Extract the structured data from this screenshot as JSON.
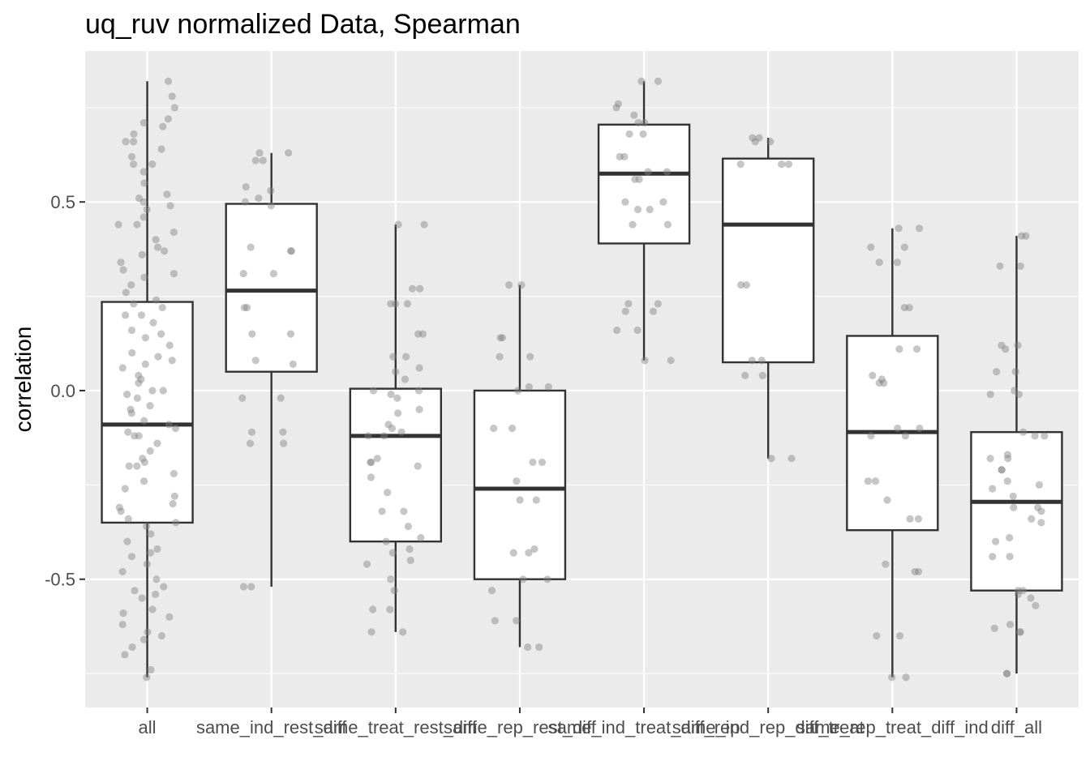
{
  "chart_data": {
    "type": "box",
    "title": "uq_ruv normalized Data, Spearman",
    "xlabel": "",
    "ylabel": "correlation",
    "ylim": [
      -0.84,
      0.9
    ],
    "yticks": [
      {
        "value": -0.5,
        "label": "-0.5"
      },
      {
        "value": 0.0,
        "label": "0.0"
      },
      {
        "value": 0.5,
        "label": "0.5"
      }
    ],
    "grid": true,
    "background": "#ebebeb",
    "point_color": "#808080",
    "categories": [
      "all",
      "same_ind_rest_diff",
      "same_treat_rest_diff",
      "same_rep_rest_diff",
      "same_ind_treat_diff_rep",
      "same_ind_rep_diff_treat",
      "same_rep_treat_diff_ind",
      "diff_all"
    ],
    "boxes": [
      {
        "category": "all",
        "min": -0.76,
        "q1": -0.35,
        "median": -0.09,
        "q3": 0.235,
        "max": 0.82
      },
      {
        "category": "same_ind_rest_diff",
        "min": -0.52,
        "q1": 0.05,
        "median": 0.265,
        "q3": 0.495,
        "max": 0.63
      },
      {
        "category": "same_treat_rest_diff",
        "min": -0.64,
        "q1": -0.4,
        "median": -0.12,
        "q3": 0.005,
        "max": 0.44
      },
      {
        "category": "same_rep_rest_diff",
        "min": -0.68,
        "q1": -0.5,
        "median": -0.26,
        "q3": 0.0,
        "max": 0.28
      },
      {
        "category": "same_ind_treat_diff_rep",
        "min": 0.08,
        "q1": 0.39,
        "median": 0.575,
        "q3": 0.705,
        "max": 0.82
      },
      {
        "category": "same_ind_rep_diff_treat",
        "min": -0.18,
        "q1": 0.075,
        "median": 0.44,
        "q3": 0.615,
        "max": 0.67
      },
      {
        "category": "same_rep_treat_diff_ind",
        "min": -0.76,
        "q1": -0.37,
        "median": -0.11,
        "q3": 0.145,
        "max": 0.43
      },
      {
        "category": "diff_all",
        "min": -0.75,
        "q1": -0.53,
        "median": -0.295,
        "q3": -0.11,
        "max": 0.41
      }
    ],
    "points": [
      [
        -0.76,
        -0.74,
        -0.7,
        -0.68,
        -0.66,
        -0.64,
        -0.62,
        -0.6,
        -0.58,
        -0.55,
        -0.53,
        -0.52,
        -0.5,
        -0.48,
        -0.46,
        -0.44,
        -0.42,
        -0.4,
        -0.38,
        -0.36,
        -0.34,
        -0.32,
        -0.3,
        -0.28,
        -0.26,
        -0.24,
        -0.22,
        -0.2,
        -0.18,
        -0.16,
        -0.14,
        -0.12,
        -0.11,
        -0.1,
        -0.08,
        -0.06,
        -0.04,
        -0.02,
        -0.01,
        0.0,
        0.02,
        0.04,
        0.06,
        0.08,
        0.1,
        0.12,
        0.14,
        0.16,
        0.18,
        0.2,
        0.22,
        0.24,
        0.26,
        0.28,
        0.3,
        0.32,
        0.34,
        0.36,
        0.38,
        0.4,
        0.42,
        0.44,
        0.46,
        0.48,
        0.5,
        0.52,
        0.55,
        0.58,
        0.6,
        0.62,
        0.64,
        0.66,
        0.68,
        0.7,
        0.72,
        0.75,
        0.78,
        0.82,
        -0.65,
        -0.54,
        -0.43,
        -0.31,
        -0.2,
        -0.12,
        -0.05,
        0.03,
        0.09,
        0.15,
        0.23,
        0.31,
        0.44,
        0.51,
        0.6,
        0.71,
        -0.59,
        -0.35,
        -0.19,
        -0.09,
        0.0,
        0.07,
        0.2,
        0.37,
        0.49,
        0.66
      ],
      [
        -0.52,
        -0.52,
        -0.14,
        -0.11,
        -0.02,
        0.07,
        0.08,
        0.15,
        0.15,
        0.22,
        0.22,
        0.31,
        0.31,
        0.37,
        0.37,
        0.38,
        0.49,
        0.5,
        0.51,
        0.53,
        0.54,
        0.61,
        0.61,
        0.63,
        0.63,
        -0.14,
        -0.11,
        -0.02
      ],
      [
        -0.64,
        -0.64,
        -0.58,
        -0.58,
        -0.53,
        -0.5,
        -0.46,
        -0.45,
        -0.43,
        -0.42,
        -0.4,
        -0.39,
        -0.36,
        -0.32,
        -0.32,
        -0.27,
        -0.23,
        -0.2,
        -0.19,
        -0.19,
        -0.18,
        -0.12,
        -0.12,
        -0.11,
        -0.1,
        -0.09,
        -0.06,
        -0.05,
        -0.02,
        -0.01,
        0.0,
        0.0,
        0.03,
        0.05,
        0.06,
        0.09,
        0.09,
        0.15,
        0.15,
        0.23,
        0.23,
        0.23,
        0.27,
        0.27,
        0.44,
        0.44
      ],
      [
        -0.68,
        -0.68,
        -0.61,
        -0.61,
        -0.5,
        -0.5,
        -0.43,
        -0.43,
        -0.42,
        -0.29,
        -0.29,
        -0.24,
        -0.19,
        -0.19,
        -0.1,
        -0.1,
        0.0,
        0.01,
        0.01,
        0.09,
        0.09,
        0.14,
        0.14,
        0.28,
        0.28,
        -0.53
      ],
      [
        0.08,
        0.08,
        0.16,
        0.16,
        0.21,
        0.21,
        0.23,
        0.23,
        0.44,
        0.44,
        0.48,
        0.48,
        0.5,
        0.5,
        0.56,
        0.56,
        0.58,
        0.58,
        0.62,
        0.62,
        0.68,
        0.68,
        0.71,
        0.71,
        0.73,
        0.75,
        0.76,
        0.82,
        0.82
      ],
      [
        -0.18,
        -0.18,
        0.04,
        0.04,
        0.08,
        0.08,
        0.28,
        0.28,
        0.6,
        0.6,
        0.6,
        0.66,
        0.66,
        0.67,
        0.67
      ],
      [
        -0.76,
        -0.76,
        -0.65,
        -0.65,
        -0.48,
        -0.48,
        -0.46,
        -0.34,
        -0.34,
        -0.29,
        -0.24,
        -0.24,
        -0.12,
        -0.12,
        -0.1,
        -0.1,
        0.02,
        0.02,
        0.03,
        0.04,
        0.11,
        0.11,
        0.22,
        0.22,
        0.34,
        0.34,
        0.38,
        0.38,
        0.43,
        0.43
      ],
      [
        -0.75,
        -0.75,
        -0.64,
        -0.64,
        -0.63,
        -0.62,
        -0.57,
        -0.55,
        -0.54,
        -0.53,
        -0.53,
        -0.44,
        -0.44,
        -0.4,
        -0.39,
        -0.35,
        -0.34,
        -0.32,
        -0.31,
        -0.31,
        -0.28,
        -0.26,
        -0.25,
        -0.24,
        -0.21,
        -0.21,
        -0.18,
        -0.18,
        -0.17,
        -0.12,
        -0.12,
        -0.11,
        -0.01,
        -0.01,
        0.0,
        0.05,
        0.05,
        0.11,
        0.12,
        0.12,
        0.33,
        0.33,
        0.41,
        0.41
      ]
    ]
  }
}
